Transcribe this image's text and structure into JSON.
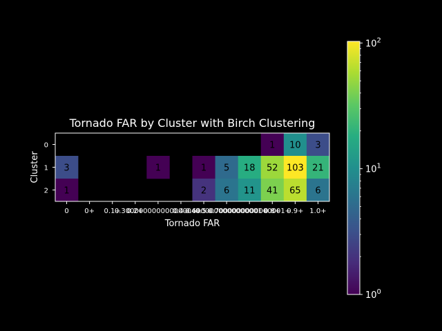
{
  "chart_data": {
    "type": "heatmap",
    "title": "Tornado FAR by Cluster with Birch Clustering",
    "xlabel": "Tornado FAR",
    "ylabel": "Cluster",
    "x_categories": [
      "0",
      "0+",
      "0.1+",
      "0.2+",
      "0.30000000000000004+",
      "0.4+",
      "0.5+",
      "0.6000000000000001+",
      "0.7000000000000001+",
      "0.8+",
      "0.9+",
      "1.0+"
    ],
    "y_categories": [
      "0",
      "1",
      "2"
    ],
    "values": [
      [
        null,
        null,
        null,
        null,
        null,
        null,
        null,
        null,
        null,
        1,
        10,
        3
      ],
      [
        3,
        null,
        null,
        null,
        1,
        null,
        1,
        5,
        18,
        52,
        103,
        21
      ],
      [
        1,
        null,
        null,
        null,
        null,
        null,
        2,
        6,
        11,
        41,
        65,
        6
      ]
    ],
    "colorbar": {
      "scale": "log",
      "range": [
        1,
        103
      ],
      "colormap": "viridis",
      "ticks": [
        {
          "base": "10",
          "exp": "0",
          "value": 1
        },
        {
          "base": "10",
          "exp": "1",
          "value": 10
        },
        {
          "base": "10",
          "exp": "2",
          "value": 100
        }
      ]
    },
    "background_color": "#000000",
    "text_color": "#ffffff"
  }
}
